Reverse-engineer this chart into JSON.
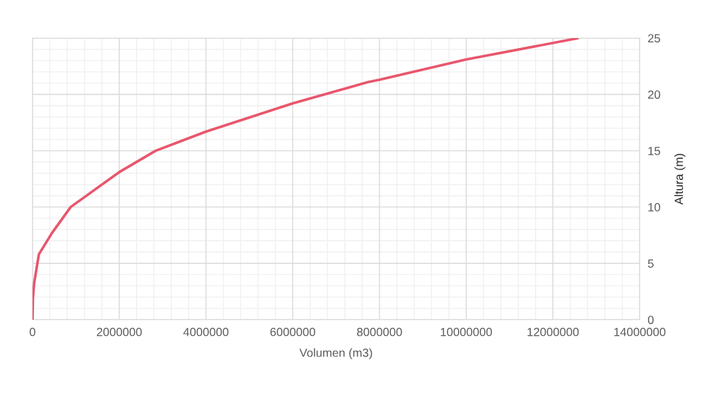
{
  "chart_data": {
    "type": "line",
    "xlabel": "Volumen (m3)",
    "ylabel": "Altura (m)",
    "x": [
      0,
      10000,
      40000,
      147000,
      450000,
      880000,
      2000000,
      2840000,
      4000000,
      6000000,
      7740000,
      8000000,
      10000000,
      12590000
    ],
    "series": [
      {
        "color": "#e8566c",
        "values": [
          0,
          1.9,
          3.3,
          5.8,
          7.7,
          10.0,
          13.1,
          15.0,
          16.7,
          19.2,
          21.1,
          21.3,
          23.1,
          25
        ]
      }
    ],
    "xlim": [
      0,
      14000000
    ],
    "xticks": [
      0,
      2000000,
      4000000,
      6000000,
      8000000,
      10000000,
      12000000,
      14000000
    ],
    "ylim": [
      0,
      25
    ],
    "yticks": [
      0,
      5,
      10,
      15,
      20,
      25
    ],
    "grid": true,
    "marker": "none",
    "line_style": "solid",
    "legend": false
  }
}
